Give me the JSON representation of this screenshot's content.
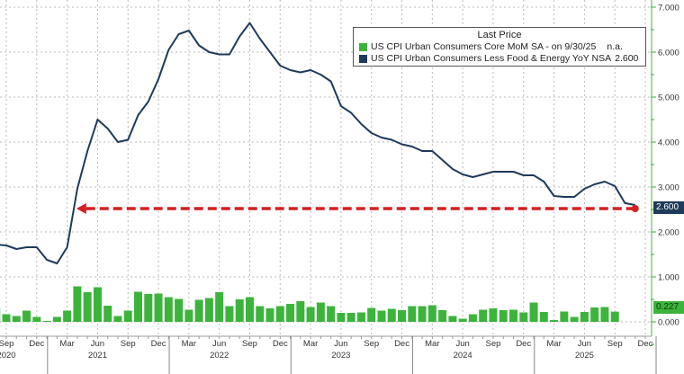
{
  "chart_data": {
    "type": "bar+line",
    "legend": {
      "title": "Last Price",
      "placement": "top-right",
      "entries": [
        {
          "label": "US CPI Urban Consumers Core MoM SA -  on 9/30/25",
          "last": "n.a.",
          "color": "#3cb43c"
        },
        {
          "label": "US CPI Urban Consumers Less Food & Energy YoY NSA",
          "last": "2.600",
          "color": "#1f3a5a"
        }
      ]
    },
    "y_axis": {
      "side": "right",
      "range": [
        -0.3,
        7.0
      ],
      "ticks": [
        "7.000",
        "6.000",
        "5.000",
        "4.000",
        "3.000",
        "2.000",
        "1.000",
        "0.000"
      ],
      "grid": true
    },
    "x_axis": {
      "ticks": [
        {
          "date": "2020-09",
          "label": "Sep",
          "year": "2020"
        },
        {
          "date": "2020-12",
          "label": "Dec"
        },
        {
          "date": "2021-03",
          "label": "Mar"
        },
        {
          "date": "2021-06",
          "label": "Jun",
          "year": "2021"
        },
        {
          "date": "2021-09",
          "label": "Sep"
        },
        {
          "date": "2021-12",
          "label": "Dec"
        },
        {
          "date": "2022-03",
          "label": "Mar"
        },
        {
          "date": "2022-06",
          "label": "Jun",
          "year": "2022"
        },
        {
          "date": "2022-09",
          "label": "Sep"
        },
        {
          "date": "2022-12",
          "label": "Dec"
        },
        {
          "date": "2023-03",
          "label": "Mar"
        },
        {
          "date": "2023-06",
          "label": "Jun",
          "year": "2023"
        },
        {
          "date": "2023-09",
          "label": "Sep"
        },
        {
          "date": "2023-12",
          "label": "Dec"
        },
        {
          "date": "2024-03",
          "label": "Mar"
        },
        {
          "date": "2024-06",
          "label": "Jun",
          "year": "2024"
        },
        {
          "date": "2024-09",
          "label": "Sep"
        },
        {
          "date": "2024-12",
          "label": "Dec"
        },
        {
          "date": "2025-03",
          "label": "Mar"
        },
        {
          "date": "2025-06",
          "label": "Jun",
          "year": "2025"
        },
        {
          "date": "2025-09",
          "label": "Sep"
        },
        {
          "date": "2025-12",
          "label": "Dec"
        }
      ],
      "grid": true
    },
    "series": [
      {
        "name": "US CPI Urban Consumers Core MoM SA",
        "type": "bar",
        "color": "#3cb43c",
        "last_value_badge": "0.227",
        "points": [
          [
            "2020-08",
            0.3
          ],
          [
            "2020-09",
            0.17
          ],
          [
            "2020-10",
            0.13
          ],
          [
            "2020-11",
            0.25
          ],
          [
            "2020-12",
            0.11
          ],
          [
            "2021-01",
            0.01
          ],
          [
            "2021-02",
            0.11
          ],
          [
            "2021-03",
            0.25
          ],
          [
            "2021-04",
            0.79
          ],
          [
            "2021-05",
            0.66
          ],
          [
            "2021-06",
            0.77
          ],
          [
            "2021-07",
            0.36
          ],
          [
            "2021-08",
            0.13
          ],
          [
            "2021-09",
            0.25
          ],
          [
            "2021-10",
            0.67
          ],
          [
            "2021-11",
            0.62
          ],
          [
            "2021-12",
            0.63
          ],
          [
            "2022-01",
            0.55
          ],
          [
            "2022-02",
            0.51
          ],
          [
            "2022-03",
            0.27
          ],
          [
            "2022-04",
            0.49
          ],
          [
            "2022-05",
            0.53
          ],
          [
            "2022-06",
            0.66
          ],
          [
            "2022-07",
            0.35
          ],
          [
            "2022-08",
            0.5
          ],
          [
            "2022-09",
            0.55
          ],
          [
            "2022-10",
            0.35
          ],
          [
            "2022-11",
            0.3
          ],
          [
            "2022-12",
            0.35
          ],
          [
            "2023-01",
            0.4
          ],
          [
            "2023-02",
            0.46
          ],
          [
            "2023-03",
            0.33
          ],
          [
            "2023-04",
            0.43
          ],
          [
            "2023-05",
            0.35
          ],
          [
            "2023-06",
            0.2
          ],
          [
            "2023-07",
            0.2
          ],
          [
            "2023-08",
            0.21
          ],
          [
            "2023-09",
            0.31
          ],
          [
            "2023-10",
            0.25
          ],
          [
            "2023-11",
            0.29
          ],
          [
            "2023-12",
            0.26
          ],
          [
            "2024-01",
            0.35
          ],
          [
            "2024-02",
            0.35
          ],
          [
            "2024-03",
            0.37
          ],
          [
            "2024-04",
            0.26
          ],
          [
            "2024-05",
            0.13
          ],
          [
            "2024-06",
            0.07
          ],
          [
            "2024-07",
            0.17
          ],
          [
            "2024-08",
            0.27
          ],
          [
            "2024-09",
            0.3
          ],
          [
            "2024-10",
            0.26
          ],
          [
            "2024-11",
            0.27
          ],
          [
            "2024-12",
            0.21
          ],
          [
            "2025-01",
            0.43
          ],
          [
            "2025-02",
            0.22
          ],
          [
            "2025-03",
            0.04
          ],
          [
            "2025-04",
            0.23
          ],
          [
            "2025-05",
            0.11
          ],
          [
            "2025-06",
            0.22
          ],
          [
            "2025-07",
            0.32
          ],
          [
            "2025-08",
            0.33
          ],
          [
            "2025-09",
            0.227
          ]
        ]
      },
      {
        "name": "US CPI Urban Consumers Less Food & Energy YoY NSA",
        "type": "line",
        "color": "#1f3a5a",
        "last_value_badge": "2.600",
        "points": [
          [
            "2020-08",
            1.72
          ],
          [
            "2020-09",
            1.7
          ],
          [
            "2020-10",
            1.62
          ],
          [
            "2020-11",
            1.66
          ],
          [
            "2020-12",
            1.66
          ],
          [
            "2021-01",
            1.38
          ],
          [
            "2021-02",
            1.3
          ],
          [
            "2021-03",
            1.66
          ],
          [
            "2021-04",
            2.96
          ],
          [
            "2021-05",
            3.8
          ],
          [
            "2021-06",
            4.5
          ],
          [
            "2021-07",
            4.3
          ],
          [
            "2021-08",
            4.0
          ],
          [
            "2021-09",
            4.05
          ],
          [
            "2021-10",
            4.6
          ],
          [
            "2021-11",
            4.9
          ],
          [
            "2021-12",
            5.4
          ],
          [
            "2022-01",
            6.05
          ],
          [
            "2022-02",
            6.4
          ],
          [
            "2022-03",
            6.48
          ],
          [
            "2022-04",
            6.15
          ],
          [
            "2022-05",
            6.0
          ],
          [
            "2022-06",
            5.95
          ],
          [
            "2022-07",
            5.95
          ],
          [
            "2022-08",
            6.35
          ],
          [
            "2022-09",
            6.65
          ],
          [
            "2022-10",
            6.3
          ],
          [
            "2022-11",
            6.0
          ],
          [
            "2022-12",
            5.7
          ],
          [
            "2023-01",
            5.6
          ],
          [
            "2023-02",
            5.55
          ],
          [
            "2023-03",
            5.6
          ],
          [
            "2023-04",
            5.5
          ],
          [
            "2023-05",
            5.35
          ],
          [
            "2023-06",
            4.8
          ],
          [
            "2023-07",
            4.65
          ],
          [
            "2023-08",
            4.4
          ],
          [
            "2023-09",
            4.2
          ],
          [
            "2023-10",
            4.1
          ],
          [
            "2023-11",
            4.05
          ],
          [
            "2023-12",
            3.95
          ],
          [
            "2024-01",
            3.9
          ],
          [
            "2024-02",
            3.8
          ],
          [
            "2024-03",
            3.8
          ],
          [
            "2024-04",
            3.6
          ],
          [
            "2024-05",
            3.4
          ],
          [
            "2024-06",
            3.28
          ],
          [
            "2024-07",
            3.22
          ],
          [
            "2024-08",
            3.28
          ],
          [
            "2024-09",
            3.34
          ],
          [
            "2024-10",
            3.34
          ],
          [
            "2024-11",
            3.34
          ],
          [
            "2024-12",
            3.26
          ],
          [
            "2025-01",
            3.26
          ],
          [
            "2025-02",
            3.12
          ],
          [
            "2025-03",
            2.8
          ],
          [
            "2025-04",
            2.78
          ],
          [
            "2025-05",
            2.78
          ],
          [
            "2025-06",
            2.96
          ],
          [
            "2025-07",
            3.06
          ],
          [
            "2025-08",
            3.12
          ],
          [
            "2025-09",
            3.02
          ],
          [
            "2025-10",
            2.64
          ],
          [
            "2025-11",
            2.6
          ]
        ]
      }
    ],
    "annotations": [
      {
        "type": "dashed-arrow",
        "color": "#d42020",
        "y": 2.52,
        "from": "2025-11",
        "to": "2021-04"
      }
    ]
  }
}
